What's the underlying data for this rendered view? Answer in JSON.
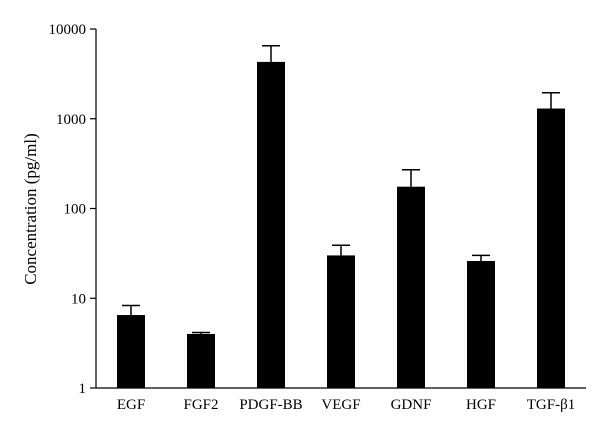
{
  "chart_data": {
    "type": "bar",
    "title": "",
    "xlabel": "",
    "ylabel": "Concentration (pg/ml)",
    "yscale": "log",
    "ylim": [
      1,
      10000
    ],
    "yticks": [
      1,
      10,
      100,
      1000,
      10000
    ],
    "ytick_labels": [
      "1",
      "10",
      "100",
      "1000",
      "10000"
    ],
    "grid": false,
    "legend": "none",
    "categories": [
      "EGF",
      "FGF2",
      "PDGF-BB",
      "VEGF",
      "GDNF",
      "HGF",
      "TGF-β1"
    ],
    "values": [
      6.5,
      4.0,
      4300,
      30,
      175,
      26,
      1300
    ],
    "error_upper": [
      8.3,
      4.15,
      6500,
      39,
      270,
      30,
      1950
    ],
    "bar_color": "#000000"
  }
}
